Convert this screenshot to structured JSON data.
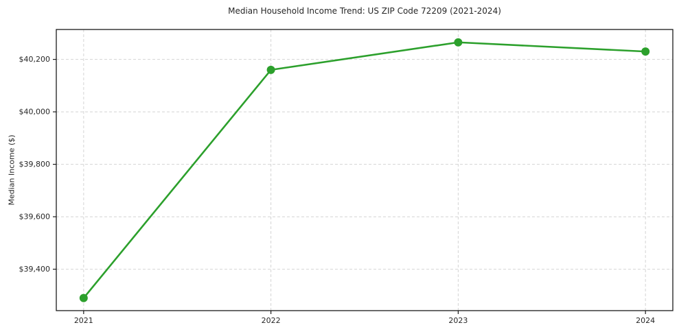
{
  "chart_data": {
    "type": "line",
    "title": "Median Household Income Trend: US ZIP Code 72209 (2021-2024)",
    "ylabel": "Median Income ($)",
    "x": [
      2021,
      2022,
      2023,
      2024
    ],
    "series": [
      {
        "name": "Median Household Income",
        "values": [
          39290,
          40160,
          40265,
          40230
        ]
      }
    ],
    "xticks": [
      2021,
      2022,
      2023,
      2024
    ],
    "xtick_labels": [
      "2021",
      "2022",
      "2023",
      "2024"
    ],
    "yticks": [
      39400,
      39600,
      39800,
      40000,
      40200
    ],
    "ytick_labels": [
      "$39,400",
      "$39,600",
      "$39,800",
      "$40,000",
      "$40,200"
    ],
    "xlim": [
      2020.854,
      2024.146
    ],
    "ylim": [
      39242,
      40314
    ],
    "grid": true,
    "legend_position": "none",
    "colors": {
      "line": "#2ca02c",
      "marker": "#2ca02c",
      "grid": "#d4d4d4",
      "spine": "#1a1a1a",
      "text": "#262626"
    }
  }
}
